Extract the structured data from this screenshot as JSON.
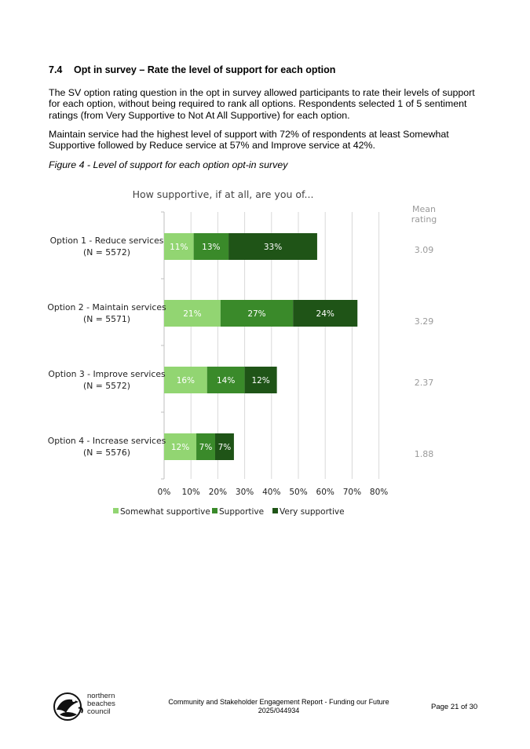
{
  "section": {
    "number": "7.4",
    "title": "Opt in survey – Rate the level of support for each option"
  },
  "paragraphs": [
    "The SV option rating question in the opt in survey allowed participants to rate their levels of support for each option, without being required to rank all options. Respondents selected 1 of 5 sentiment ratings (from Very Supportive to Not At All Supportive) for each option.",
    "Maintain service had the highest level of support with 72% of respondents at least Somewhat Supportive followed by Reduce service at 57% and Improve service at 42%."
  ],
  "figure_caption": "Figure 4 - Level of support for each option opt-in survey",
  "chart_data": {
    "type": "bar",
    "orientation": "horizontal",
    "stacked": true,
    "title": "How supportive, if at all, are you of...",
    "categories": [
      [
        "Option 1 - Reduce services",
        "(N = 5572)"
      ],
      [
        "Option 2 - Maintain services",
        "(N = 5571)"
      ],
      [
        "Option 3 - Improve services",
        "(N = 5572)"
      ],
      [
        "Option 4 - Increase services",
        "(N = 5576)"
      ]
    ],
    "series": [
      {
        "name": "Somewhat supportive",
        "color": "#92d572",
        "values": [
          11,
          21,
          16,
          12
        ]
      },
      {
        "name": "Supportive",
        "color": "#3a8a2a",
        "values": [
          13,
          27,
          14,
          7
        ]
      },
      {
        "name": "Very supportive",
        "color": "#1f5417",
        "values": [
          33,
          24,
          12,
          7
        ]
      }
    ],
    "xlim": [
      0,
      80
    ],
    "xticks": [
      0,
      10,
      20,
      30,
      40,
      50,
      60,
      70,
      80
    ],
    "tick_suffix": "%",
    "gridlines": true,
    "legend_position": "bottom",
    "mean_rating": {
      "label": [
        "Mean",
        "rating"
      ],
      "values": [
        "3.09",
        "3.29",
        "2.37",
        "1.88"
      ]
    }
  },
  "footer": {
    "org_name": [
      "northern",
      "beaches",
      "council"
    ],
    "report_title": "Community and Stakeholder Engagement Report - Funding our Future",
    "doc_number": "2025/044934",
    "page": "Page 21 of 30"
  }
}
